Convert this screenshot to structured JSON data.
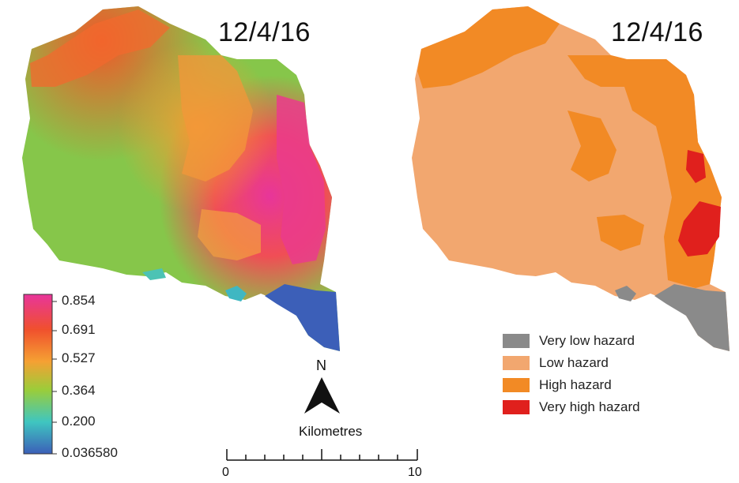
{
  "maps": [
    {
      "date": "12/4/16",
      "type": "continuous"
    },
    {
      "date": "12/4/16",
      "type": "classified"
    }
  ],
  "colorbar": {
    "labels": [
      "0.854",
      "0.691",
      "0.527",
      "0.364",
      "0.200",
      "0.036580"
    ],
    "colors": [
      "#e8359a",
      "#f0502d",
      "#f5a033",
      "#9acd3a",
      "#3fc6c0",
      "#3c5fb8"
    ]
  },
  "legend": [
    {
      "label": "Very low hazard",
      "color": "#8a8a8a"
    },
    {
      "label": "Low hazard",
      "color": "#f2a76f"
    },
    {
      "label": "High hazard",
      "color": "#f28a25"
    },
    {
      "label": "Very high hazard",
      "color": "#e0201d"
    }
  ],
  "north_arrow": {
    "label": "N"
  },
  "scale_bar": {
    "title": "Kilometres",
    "start_label": "0",
    "end_label": "10"
  }
}
